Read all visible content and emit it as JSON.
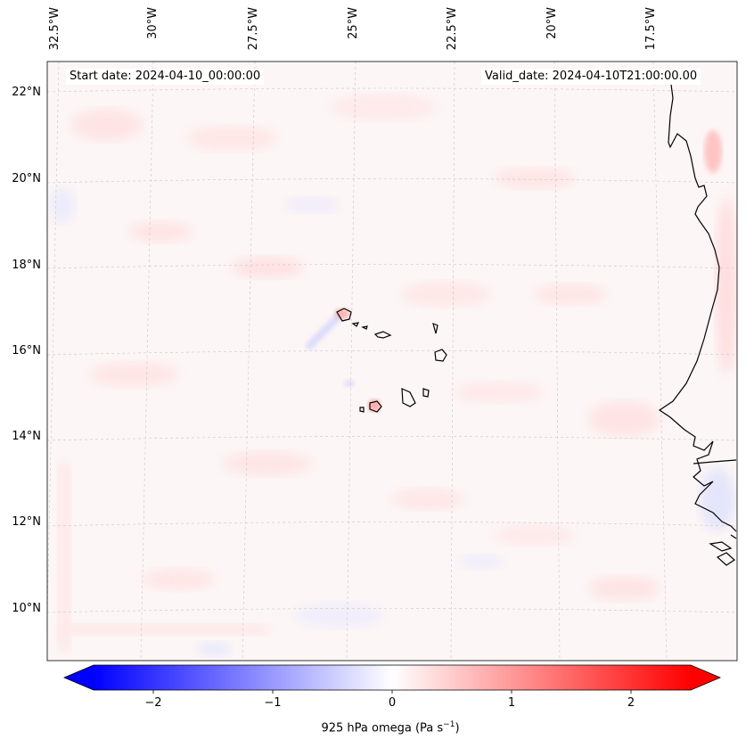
{
  "map": {
    "start_date": "Start date: 2024-04-10_00:00:00",
    "valid_date": "Valid_date: 2024-04-10T21:00:00.00",
    "lon_labels": [
      "32.5°W",
      "30°W",
      "27.5°W",
      "25°W",
      "22.5°W",
      "20°W",
      "17.5°W"
    ],
    "lat_labels": [
      "22°N",
      "20°N",
      "18°N",
      "16°N",
      "14°N",
      "12°N",
      "10°N"
    ],
    "colors": {
      "negative": "#0000ff",
      "neutral": "#ffffff",
      "positive": "#ff0000",
      "coast": "#000000",
      "grid": "#c8c8c8"
    }
  },
  "colorbar": {
    "ticks": [
      "−2",
      "−1",
      "0",
      "1",
      "2"
    ],
    "tick_values": [
      -2,
      -1,
      0,
      1,
      2
    ],
    "range": [
      -2.5,
      2.5
    ],
    "label": "925 hPa omega (Pa s",
    "label_exp": "−1",
    "label_close": ")"
  }
}
